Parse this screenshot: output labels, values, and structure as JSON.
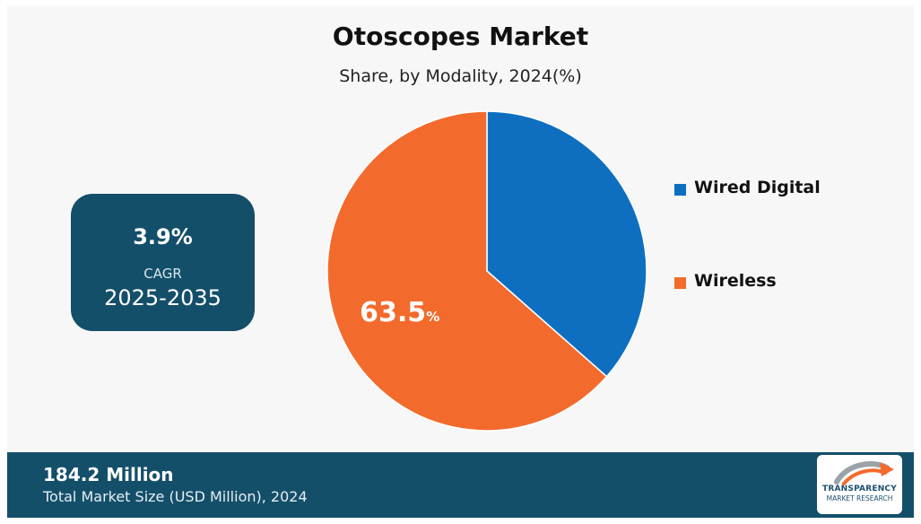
{
  "chart_data": {
    "type": "pie",
    "title": "Otoscopes Market",
    "subtitle": "Share, by Modality, 2024(%)",
    "slices": [
      {
        "name": "Wired Digital",
        "value": 36.5,
        "color": "#0e6fc0"
      },
      {
        "name": "Wireless",
        "value": 63.5,
        "color": "#f36b2c"
      }
    ],
    "data_labels": [
      {
        "slice": "Wireless",
        "value": "63.5",
        "unit": "%"
      }
    ],
    "legend_placement": "right"
  },
  "cagr": {
    "value": "3.9%",
    "label": "CAGR",
    "period": "2025-2035"
  },
  "footer": {
    "market_size": "184.2 Million",
    "caption": "Total Market Size (USD Million), 2024"
  },
  "logo": {
    "line1": "TRANSPARENCY",
    "line2": "MARKET RESEARCH"
  }
}
